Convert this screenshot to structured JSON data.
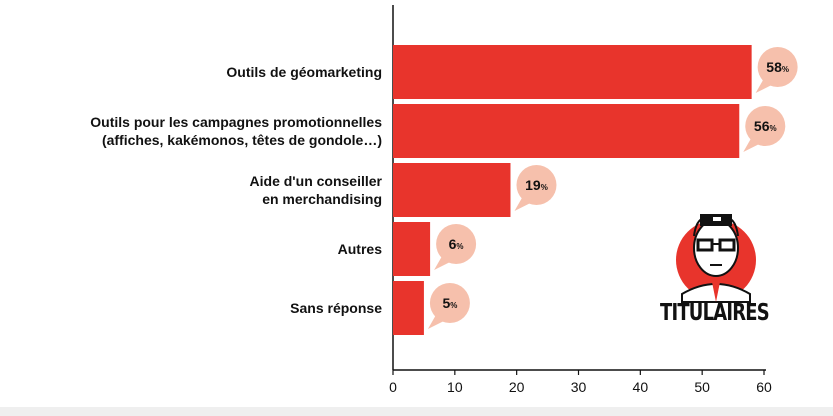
{
  "chart_data": {
    "type": "bar",
    "orientation": "horizontal",
    "categories": [
      [
        "Outils de géomarketing"
      ],
      [
        "Outils pour les campagnes promotionnelles",
        "(affiches, kakémonos, têtes de gondole…)"
      ],
      [
        "Aide d'un conseiller",
        "en merchandising"
      ],
      [
        "Autres"
      ],
      [
        "Sans réponse"
      ]
    ],
    "values": [
      58,
      56,
      19,
      6,
      5
    ],
    "value_labels": [
      "58%",
      "56%",
      "19%",
      "6%",
      "5%"
    ],
    "xlim": [
      0,
      60
    ],
    "xticks": [
      "0",
      "10",
      "20",
      "30",
      "40",
      "50",
      "60"
    ],
    "grid": false,
    "colors": {
      "bar": "#e8342c",
      "bubble": "#f6c0ac",
      "text": "#111111"
    }
  },
  "badge": {
    "label": "TITULAIRES",
    "icon": "man-with-glasses-icon"
  }
}
